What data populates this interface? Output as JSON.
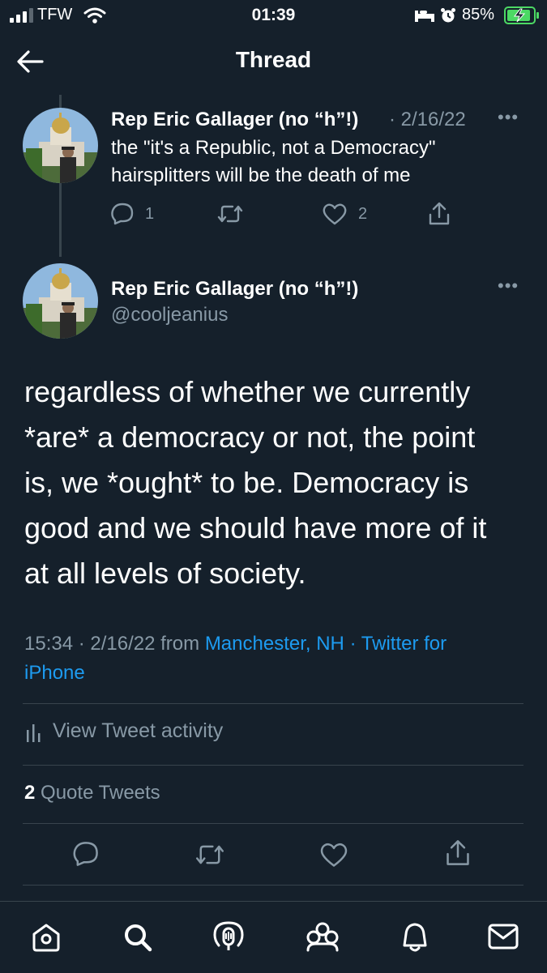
{
  "status_bar": {
    "carrier": "TFW",
    "time": "01:39",
    "battery": "85%"
  },
  "header": {
    "title": "Thread"
  },
  "parent_tweet": {
    "name": "Rep Eric Gallager (no “h”!)",
    "date": "· 2/16/22",
    "text_line1": "the \"it's a Republic, not a Democracy\"",
    "text_line2": "hairsplitters will be the death of me",
    "reply_count": "1",
    "like_count": "2"
  },
  "main_tweet": {
    "name": "Rep Eric Gallager (no “h”!)",
    "handle": "@cooljeanius",
    "text_lines": [
      "regardless of whether we currently",
      "*are* a democracy or not, the point",
      "is, we *ought* to be. Democracy is",
      "good and we should have more of it",
      "at all levels of society."
    ],
    "time_date": "15:34 · 2/16/22",
    "from": "from",
    "location": "Manchester, NH",
    "source_prefix": "· Twitter for",
    "source_suffix": "iPhone",
    "activity": "View Tweet activity",
    "quote_count": "2",
    "quote_label": "Quote Tweets"
  },
  "icons": {
    "colors": {
      "accent": "#1d9bf0",
      "muted": "#8899a6",
      "background": "#15202b",
      "divider": "#38444d",
      "battery": "#4cd964"
    }
  }
}
